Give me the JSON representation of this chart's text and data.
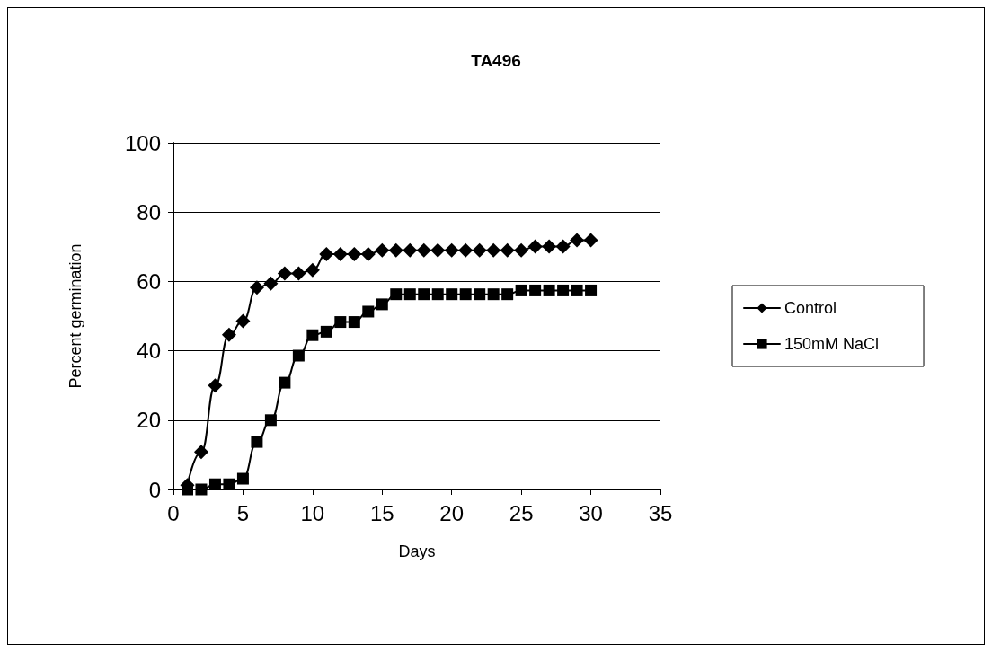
{
  "chart_data": {
    "type": "line",
    "title": "TA496",
    "xlabel": "Days",
    "ylabel": "Percent germination",
    "x": [
      1,
      2,
      3,
      4,
      5,
      6,
      7,
      8,
      9,
      10,
      11,
      12,
      13,
      14,
      15,
      16,
      17,
      18,
      19,
      20,
      21,
      22,
      23,
      24,
      25,
      26,
      27,
      28,
      29,
      30
    ],
    "series": [
      {
        "name": "Control",
        "color": "#000000",
        "marker": "diamond",
        "values": [
          1.2,
          10.8,
          30,
          44.6,
          48.6,
          58.2,
          59.4,
          62.3,
          62.3,
          63.3,
          67.9,
          67.9,
          67.9,
          67.9,
          69,
          69,
          69,
          69,
          69,
          69,
          69,
          69,
          69,
          69,
          69,
          70.1,
          70.1,
          70.1,
          71.9,
          71.9
        ]
      },
      {
        "name": "150mM NaCl",
        "color": "#000000",
        "marker": "square",
        "values": [
          0,
          0,
          1.5,
          1.5,
          3.1,
          13.7,
          20,
          30.8,
          38.6,
          44.5,
          45.5,
          48.3,
          48.3,
          51.3,
          53.4,
          56.3,
          56.3,
          56.3,
          56.3,
          56.3,
          56.3,
          56.3,
          56.3,
          56.3,
          57.4,
          57.4,
          57.4,
          57.4,
          57.4,
          57.4
        ]
      }
    ],
    "xlim": [
      0,
      35
    ],
    "xticks": [
      0,
      5,
      10,
      15,
      20,
      25,
      30,
      35
    ],
    "ylim": [
      0,
      100
    ],
    "yticks": [
      0,
      20,
      40,
      60,
      80,
      100
    ],
    "grid": "y",
    "legend": "right",
    "line_style": "solid"
  }
}
